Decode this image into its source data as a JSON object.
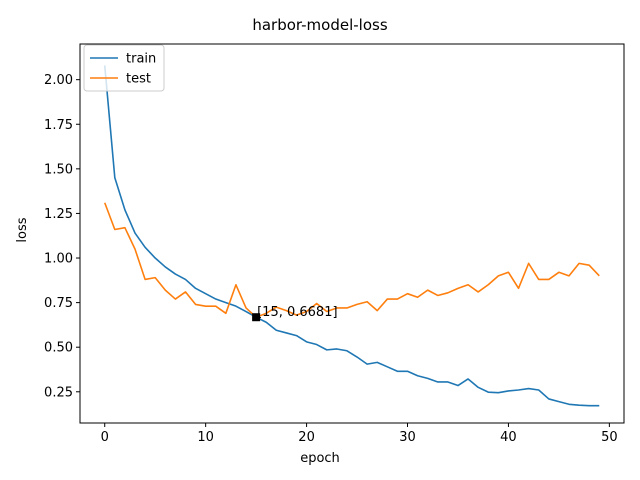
{
  "chart_data": {
    "type": "line",
    "title": "harbor-model-loss",
    "xlabel": "epoch",
    "ylabel": "loss",
    "xlim": [
      -2.45,
      51.45
    ],
    "ylim": [
      0.075,
      2.2
    ],
    "xticks": [
      0,
      10,
      20,
      30,
      40,
      50
    ],
    "yticks": [
      0.25,
      0.5,
      0.75,
      1.0,
      1.25,
      1.5,
      1.75,
      2.0
    ],
    "ytick_labels": [
      "0.25",
      "0.50",
      "0.75",
      "1.00",
      "1.25",
      "1.50",
      "1.75",
      "2.00"
    ],
    "grid": false,
    "legend_position": "top-left",
    "x": [
      0,
      1,
      2,
      3,
      4,
      5,
      6,
      7,
      8,
      9,
      10,
      11,
      12,
      13,
      14,
      15,
      16,
      17,
      18,
      19,
      20,
      21,
      22,
      23,
      24,
      25,
      26,
      27,
      28,
      29,
      30,
      31,
      32,
      33,
      34,
      35,
      36,
      37,
      38,
      39,
      40,
      41,
      42,
      43,
      44,
      45,
      46,
      47,
      48,
      49
    ],
    "series": [
      {
        "name": "train",
        "color": "#1f77b4",
        "values": [
          2.08,
          1.45,
          1.27,
          1.14,
          1.06,
          1.0,
          0.95,
          0.91,
          0.88,
          0.83,
          0.8,
          0.77,
          0.75,
          0.73,
          0.7,
          0.6681,
          0.64,
          0.595,
          0.58,
          0.565,
          0.53,
          0.515,
          0.485,
          0.49,
          0.48,
          0.445,
          0.405,
          0.415,
          0.39,
          0.365,
          0.365,
          0.34,
          0.325,
          0.305,
          0.305,
          0.285,
          0.322,
          0.275,
          0.248,
          0.245,
          0.255,
          0.26,
          0.268,
          0.26,
          0.21,
          0.195,
          0.18,
          0.175,
          0.172,
          0.172
        ]
      },
      {
        "name": "test",
        "color": "#ff7f0e",
        "values": [
          1.31,
          1.16,
          1.17,
          1.05,
          0.88,
          0.89,
          0.82,
          0.77,
          0.81,
          0.74,
          0.73,
          0.73,
          0.69,
          0.85,
          0.72,
          0.6681,
          0.69,
          0.725,
          0.705,
          0.68,
          0.7,
          0.745,
          0.7,
          0.72,
          0.72,
          0.74,
          0.755,
          0.705,
          0.77,
          0.77,
          0.8,
          0.78,
          0.82,
          0.79,
          0.805,
          0.83,
          0.85,
          0.81,
          0.85,
          0.9,
          0.92,
          0.83,
          0.97,
          0.88,
          0.88,
          0.92,
          0.9,
          0.97,
          0.96,
          0.9
        ]
      }
    ],
    "annotation": {
      "x": 15,
      "y": 0.6681,
      "text": "[15, 0.6681]"
    }
  }
}
